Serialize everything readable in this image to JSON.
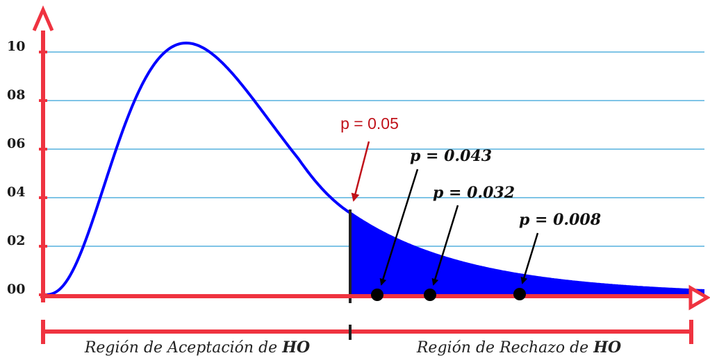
{
  "chart_data": {
    "type": "area",
    "y_ticks": [
      "00",
      "02",
      "04",
      "06",
      "08",
      "10"
    ],
    "grid": true,
    "colors": {
      "axis": "#ef3340",
      "curve": "#0000ff",
      "fill": "#0000ff",
      "grid": "#7ec4e6",
      "critical_line": "#222222",
      "annotation_red": "#c0121a",
      "point": "#000000"
    },
    "critical": {
      "label": "p = 0.05",
      "value": 0.05
    },
    "points": [
      {
        "label": "p = 0.043",
        "value": 0.043
      },
      {
        "label": "p = 0.032",
        "value": 0.032
      },
      {
        "label": "p = 0.008",
        "value": 0.008
      }
    ],
    "regions": {
      "acceptance": {
        "text": "Región de Aceptación de ",
        "bold": "HO"
      },
      "rejection": {
        "text": "Región de Rechazo de ",
        "bold": "HO"
      }
    }
  }
}
